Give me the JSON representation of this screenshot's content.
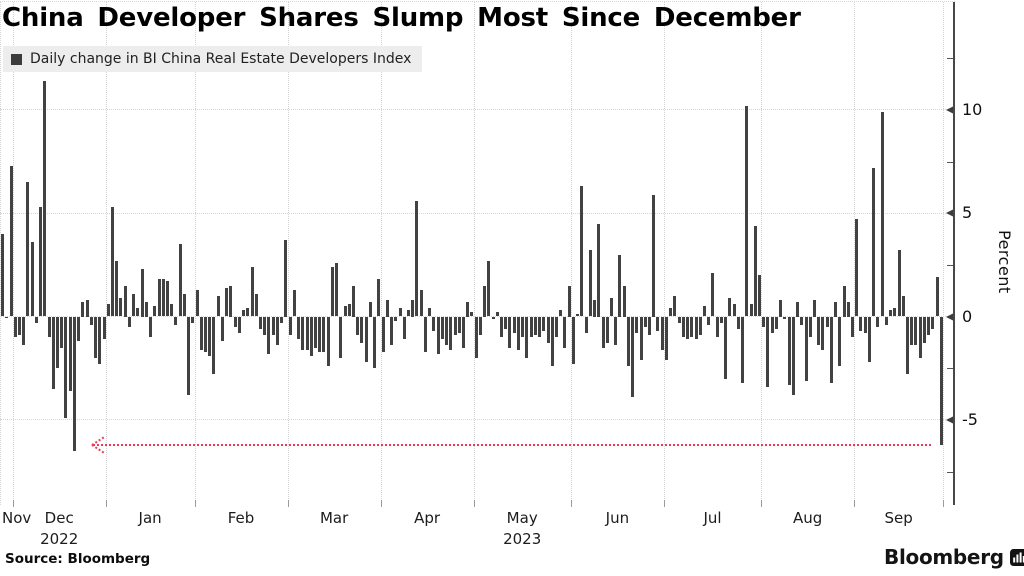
{
  "title": "China Developer Shares Slump Most Since December",
  "legend": {
    "label": "Daily change in BI China Real Estate Developers Index",
    "marker": "square-icon"
  },
  "source": "Source: Bloomberg",
  "brand": {
    "name": "Bloomberg",
    "icon": "bloomberg-chart-icon"
  },
  "colors": {
    "bar": "#424242",
    "arrow": "#ee3a57",
    "grid": "#d7d7d7",
    "axis": "#474747",
    "legend_bg": "#ededed",
    "title": "#000000"
  },
  "chart_data": {
    "type": "bar",
    "title": "China Developer Shares Slump Most Since December",
    "subtitle": "Daily change in BI China Real Estate Developers Index",
    "xlabel": "",
    "ylabel": "Percent",
    "ylim": [
      -9.2,
      13.2
    ],
    "grid": "dotted",
    "legend_position": "top-left",
    "y_axis": {
      "side": "right",
      "major_ticks": [
        10,
        5,
        0,
        -5
      ],
      "minor_ticks": [
        12.5,
        7.5,
        2.5,
        -2.5,
        -7.5
      ]
    },
    "x_axis": {
      "months": [
        {
          "label": "Nov",
          "count": 3
        },
        {
          "label": "Dec",
          "count": 22,
          "year": "2022"
        },
        {
          "label": "Jan",
          "count": 21
        },
        {
          "label": "Feb",
          "count": 22
        },
        {
          "label": "Mar",
          "count": 22
        },
        {
          "label": "Apr",
          "count": 22
        },
        {
          "label": "May",
          "count": 23,
          "year": "2023"
        },
        {
          "label": "Jun",
          "count": 22
        },
        {
          "label": "Jul",
          "count": 23
        },
        {
          "label": "Aug",
          "count": 22
        },
        {
          "label": "Sep",
          "count": 21
        }
      ]
    },
    "annotation_arrow": {
      "value": -6.2,
      "direction": "left",
      "style": "dotted",
      "meaning": "latest slump matches December's drop"
    },
    "values": [
      4.0,
      0.0,
      7.3,
      -1.0,
      -0.9,
      -1.4,
      6.5,
      3.6,
      -0.3,
      5.3,
      11.4,
      -1.0,
      -3.5,
      -2.5,
      -1.5,
      -4.9,
      -3.6,
      -6.5,
      -1.2,
      0.7,
      0.8,
      -0.4,
      -2.0,
      -2.3,
      -1.1,
      0.6,
      5.3,
      2.7,
      0.9,
      1.5,
      -0.5,
      1.1,
      0.4,
      2.3,
      0.7,
      -1.0,
      0.5,
      1.8,
      1.8,
      1.7,
      0.6,
      -0.4,
      3.5,
      1.1,
      -3.8,
      -0.3,
      1.3,
      -1.6,
      -1.7,
      -1.9,
      -2.8,
      1.0,
      -1.2,
      1.4,
      1.5,
      -0.5,
      -0.8,
      0.3,
      0.4,
      2.4,
      1.1,
      -0.6,
      -0.9,
      -1.8,
      -0.9,
      -1.4,
      -0.3,
      3.7,
      -0.9,
      1.3,
      -1.1,
      -1.6,
      -1.6,
      -1.9,
      -1.5,
      -1.7,
      -1.7,
      -2.4,
      2.4,
      2.6,
      -2.0,
      0.5,
      0.6,
      1.5,
      -0.9,
      -1.3,
      -2.2,
      0.7,
      -2.5,
      1.8,
      -1.7,
      0.8,
      -1.4,
      -0.2,
      0.4,
      -1.1,
      0.3,
      0.8,
      5.6,
      1.3,
      -1.7,
      0.4,
      -0.7,
      -1.8,
      -1.1,
      -1.4,
      -1.6,
      -0.9,
      -0.8,
      -1.5,
      0.7,
      0.2,
      -2.0,
      -0.9,
      1.5,
      2.7,
      -0.1,
      0.2,
      -1.0,
      -0.6,
      -1.5,
      -0.8,
      -1.6,
      -1.0,
      -2.0,
      -1.0,
      -0.9,
      -1.0,
      -0.7,
      -1.3,
      -2.4,
      -1.0,
      0.3,
      -1.5,
      1.5,
      -2.3,
      0.1,
      6.3,
      -0.8,
      3.2,
      0.8,
      4.5,
      -1.5,
      -1.3,
      0.9,
      -1.4,
      3.0,
      1.5,
      -2.4,
      -3.9,
      -0.8,
      -2.1,
      -0.5,
      -0.9,
      5.9,
      -0.7,
      -1.6,
      -2.1,
      0.4,
      1.0,
      -0.3,
      -1.0,
      -1.1,
      -1.0,
      -1.1,
      -0.9,
      0.5,
      -0.4,
      2.1,
      -1.0,
      -0.3,
      -3.0,
      0.9,
      0.6,
      -0.6,
      -3.2,
      10.2,
      0.6,
      4.4,
      2.0,
      -0.5,
      -3.4,
      -0.8,
      -0.6,
      0.8,
      -0.1,
      -3.3,
      -3.8,
      0.7,
      -0.4,
      -3.1,
      -1.0,
      0.8,
      -1.4,
      -1.6,
      -0.5,
      -3.2,
      0.7,
      -2.4,
      1.5,
      0.7,
      -1.0,
      4.7,
      -0.7,
      -0.8,
      -2.2,
      7.2,
      -0.5,
      9.9,
      -0.4,
      0.3,
      0.4,
      3.2,
      1.0,
      -2.8,
      -1.4,
      -1.4,
      -2.0,
      -1.3,
      -0.9,
      -0.6,
      1.9,
      -6.2
    ]
  }
}
